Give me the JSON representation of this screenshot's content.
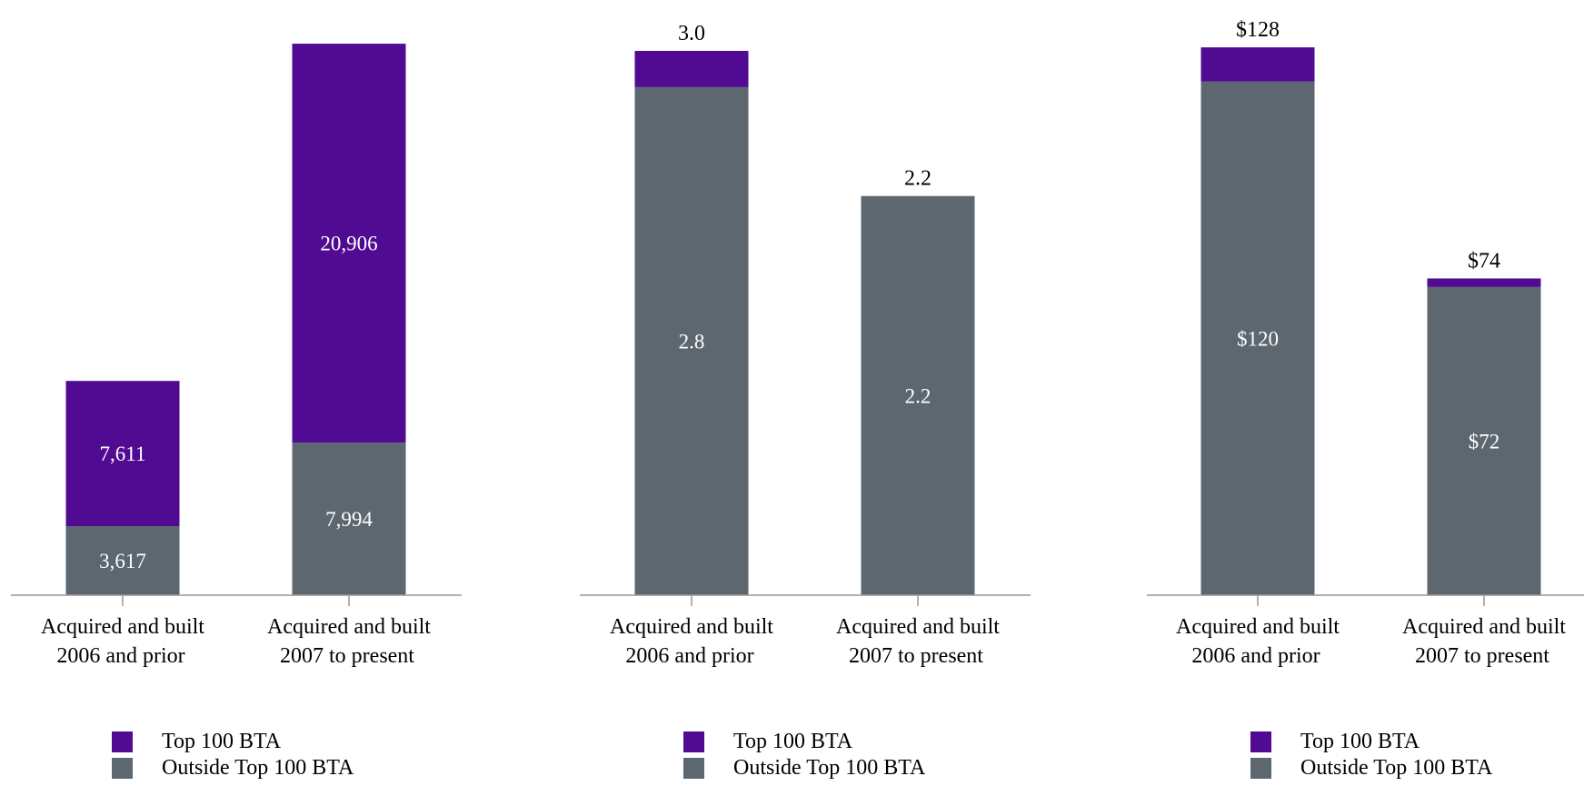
{
  "colors": {
    "top100": "#500b92",
    "outside": "#5d6770",
    "axis": "#999999",
    "label_inside": "#ffffff",
    "label_total": "#000000"
  },
  "legend": {
    "top100": "Top 100 BTA",
    "outside": "Outside Top 100 BTA"
  },
  "chart_data": [
    {
      "type": "bar",
      "stacked": true,
      "categories": [
        "Acquired and built\n2006 and prior",
        "Acquired and built\n2007 to present"
      ],
      "series": [
        {
          "name": "Outside Top 100 BTA",
          "values": [
            3617,
            7994
          ],
          "labels": [
            "3,617",
            "7,994"
          ]
        },
        {
          "name": "Top 100 BTA",
          "values": [
            7611,
            20906
          ],
          "labels": [
            "7,611",
            "20,906"
          ]
        }
      ],
      "totals": [
        "",
        ""
      ],
      "ylim": [
        0,
        29000
      ]
    },
    {
      "type": "bar",
      "stacked": true,
      "categories": [
        "Acquired and built\n2006 and prior",
        "Acquired and built\n2007 to present"
      ],
      "series": [
        {
          "name": "Outside Top 100 BTA",
          "values": [
            2.8,
            2.2
          ],
          "labels": [
            "2.8",
            "2.2"
          ]
        },
        {
          "name": "Top 100 BTA",
          "values": [
            0.2,
            0.0
          ],
          "labels": [
            "",
            ""
          ]
        }
      ],
      "totals": [
        "3.0",
        "2.2"
      ],
      "ylim": [
        0,
        3.05
      ]
    },
    {
      "type": "bar",
      "stacked": true,
      "categories": [
        "Acquired and built\n2006 and prior",
        "Acquired and built\n2007 to present"
      ],
      "series": [
        {
          "name": "Outside Top 100 BTA",
          "values": [
            120,
            72
          ],
          "labels": [
            "$120",
            "$72"
          ]
        },
        {
          "name": "Top 100 BTA",
          "values": [
            8,
            2
          ],
          "labels": [
            "",
            ""
          ]
        }
      ],
      "totals": [
        "$128",
        "$74"
      ],
      "ylim": [
        0,
        129.3
      ]
    }
  ]
}
